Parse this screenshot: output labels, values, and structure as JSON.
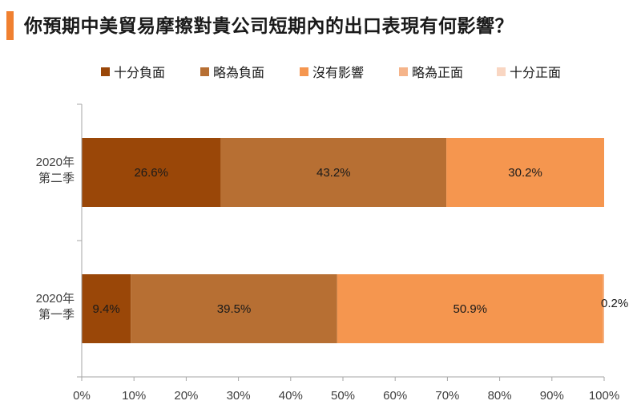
{
  "title": "你預期中美貿易摩擦對貴公司短期內的出口表現有何影響？",
  "colors": {
    "accent": "#f08030",
    "axis": "#a6a6a6"
  },
  "chart_data": {
    "type": "bar",
    "orientation": "horizontal",
    "stacked": true,
    "categories": [
      [
        "2020年",
        "第二季"
      ],
      [
        "2020年",
        "第一季"
      ]
    ],
    "series": [
      {
        "name": "十分負面",
        "color": "#9a4708",
        "values": [
          26.6,
          9.4
        ]
      },
      {
        "name": "略為負面",
        "color": "#b76f33",
        "values": [
          43.2,
          39.5
        ]
      },
      {
        "name": "沒有影響",
        "color": "#f5964f",
        "values": [
          30.2,
          50.9
        ]
      },
      {
        "name": "略為正面",
        "color": "#f5b48a",
        "values": [
          0,
          0.2
        ]
      },
      {
        "name": "十分正面",
        "color": "#f9d6c2",
        "values": [
          0,
          0
        ]
      }
    ],
    "data_labels": [
      [
        "26.6%",
        "43.2%",
        "30.2%",
        "",
        ""
      ],
      [
        "9.4%",
        "39.5%",
        "50.9%",
        "0.2%",
        ""
      ]
    ],
    "xlim": [
      0,
      100
    ],
    "xticks": [
      "0%",
      "10%",
      "20%",
      "30%",
      "40%",
      "50%",
      "60%",
      "70%",
      "80%",
      "90%",
      "100%"
    ],
    "legend_position": "top",
    "grid": false
  }
}
